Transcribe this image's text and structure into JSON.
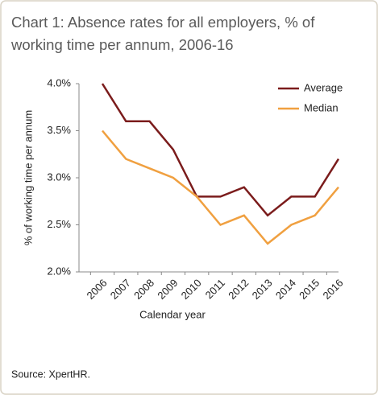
{
  "chart_data": {
    "type": "line",
    "title": "Chart 1: Absence rates for all employers, % of working time per annum, 2006-16",
    "categories": [
      "2006",
      "2007",
      "2008",
      "2009",
      "2010",
      "2011",
      "2012",
      "2013",
      "2014",
      "2015",
      "2016"
    ],
    "series": [
      {
        "name": "Average",
        "color": "#7b1c1c",
        "values": [
          4.0,
          3.6,
          3.6,
          3.3,
          2.8,
          2.8,
          2.9,
          2.6,
          2.8,
          2.8,
          3.2
        ]
      },
      {
        "name": "Median",
        "color": "#f0a040",
        "values": [
          3.5,
          3.2,
          3.1,
          3.0,
          2.8,
          2.5,
          2.6,
          2.3,
          2.5,
          2.6,
          2.9
        ]
      }
    ],
    "ylim": [
      2.0,
      4.0
    ],
    "yticks": [
      {
        "value": 2.0,
        "label": "2.0%"
      },
      {
        "value": 2.5,
        "label": "2.5%"
      },
      {
        "value": 3.0,
        "label": "3.0%"
      },
      {
        "value": 3.5,
        "label": "3.5%"
      },
      {
        "value": 4.0,
        "label": "4.0%"
      }
    ],
    "y_label": "% of working time per annum",
    "x_label": "Calendar year",
    "legend": "upper right",
    "source": "Source: XpertHR."
  }
}
